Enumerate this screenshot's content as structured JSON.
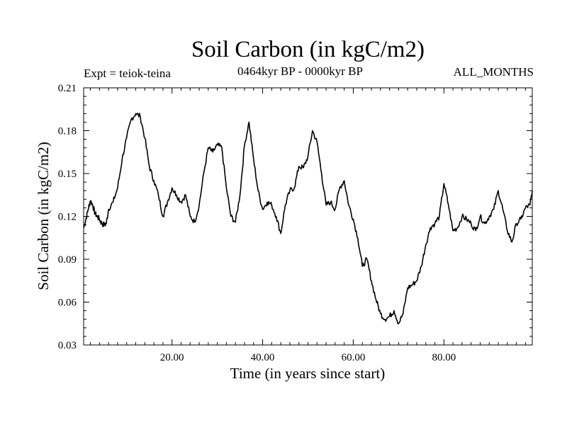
{
  "header": {
    "title": "Soil Carbon (in kgC/m2)",
    "experiment": "Expt = teiok-teina",
    "period": "0464kyr BP - 0000kyr BP",
    "months": "ALL_MONTHS"
  },
  "chart_data": {
    "type": "line",
    "title": "Soil Carbon (in kgC/m2)",
    "xlabel": "Time (in years since start)",
    "ylabel": "Soil Carbon (in kgC/m2)",
    "xlim": [
      0.5,
      99.5
    ],
    "ylim": [
      0.03,
      0.21
    ],
    "xticks": [
      20,
      40,
      60,
      80
    ],
    "xtick_labels": [
      "20.00",
      "40.00",
      "60.00",
      "80.00"
    ],
    "yticks": [
      0.03,
      0.06,
      0.09,
      0.12,
      0.15,
      0.18,
      0.21
    ],
    "ytick_labels": [
      "0.03",
      "0.06",
      "0.09",
      "0.12",
      "0.15",
      "0.18",
      "0.21"
    ],
    "grid": false,
    "line_color": "#000000",
    "series": [
      {
        "x": [
          0.5,
          1,
          1.5,
          2,
          2.5,
          3,
          3.5,
          4,
          4.5,
          5,
          5.5,
          6,
          7,
          8,
          9,
          10,
          11,
          12,
          13,
          14,
          15,
          16,
          17,
          18,
          19,
          20,
          21,
          22,
          23,
          24,
          25,
          26,
          27,
          28,
          29,
          30,
          31,
          32,
          33,
          34,
          35,
          36,
          37,
          38,
          39,
          40,
          41,
          42,
          43,
          44,
          45,
          46,
          47,
          48,
          49,
          50,
          51,
          52,
          53,
          54,
          55,
          56,
          57,
          58,
          59,
          60,
          61,
          62,
          63,
          64,
          65,
          66,
          67,
          68,
          69,
          70,
          71,
          72,
          73,
          74,
          75,
          76,
          77,
          78,
          79,
          80,
          81,
          82,
          83,
          84,
          85,
          86,
          87,
          88,
          89,
          90,
          91,
          92,
          93,
          94,
          95,
          96,
          97,
          98,
          99,
          99.5
        ],
        "y": [
          0.112,
          0.118,
          0.125,
          0.131,
          0.128,
          0.122,
          0.12,
          0.118,
          0.115,
          0.114,
          0.115,
          0.125,
          0.13,
          0.14,
          0.16,
          0.175,
          0.188,
          0.192,
          0.19,
          0.175,
          0.155,
          0.145,
          0.135,
          0.12,
          0.13,
          0.14,
          0.135,
          0.13,
          0.135,
          0.12,
          0.116,
          0.128,
          0.15,
          0.168,
          0.165,
          0.17,
          0.168,
          0.14,
          0.12,
          0.116,
          0.135,
          0.17,
          0.186,
          0.16,
          0.138,
          0.125,
          0.13,
          0.128,
          0.12,
          0.108,
          0.128,
          0.138,
          0.14,
          0.155,
          0.154,
          0.162,
          0.18,
          0.172,
          0.15,
          0.128,
          0.13,
          0.125,
          0.14,
          0.145,
          0.128,
          0.118,
          0.105,
          0.085,
          0.09,
          0.075,
          0.062,
          0.052,
          0.048,
          0.05,
          0.054,
          0.045,
          0.052,
          0.07,
          0.072,
          0.075,
          0.085,
          0.1,
          0.112,
          0.115,
          0.12,
          0.143,
          0.128,
          0.11,
          0.112,
          0.12,
          0.118,
          0.115,
          0.11,
          0.12,
          0.115,
          0.12,
          0.125,
          0.138,
          0.125,
          0.11,
          0.102,
          0.115,
          0.118,
          0.126,
          0.128,
          0.138
        ]
      }
    ]
  }
}
